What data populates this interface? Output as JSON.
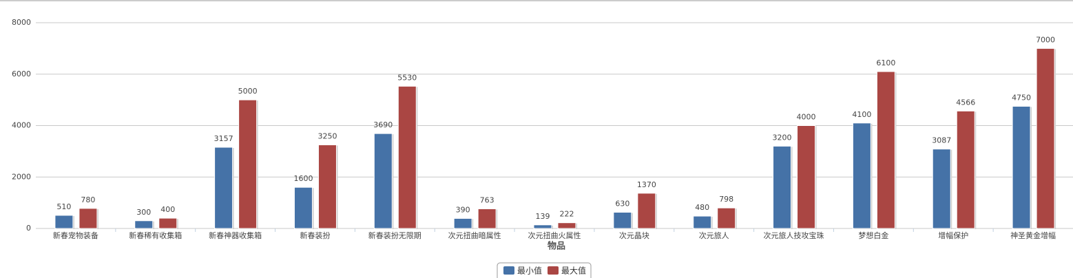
{
  "chart_data": {
    "type": "bar",
    "x_label": "物品",
    "categories": [
      "新春宠物装备",
      "新春稀有收集箱",
      "新春神器收集箱",
      "新春装扮",
      "新春装扮无限期",
      "次元扭曲暗属性",
      "次元扭曲火属性",
      "次元晶块",
      "次元旅人",
      "次元旅人技攻宝珠",
      "梦想白金",
      "增幅保护",
      "神圣黄金增幅"
    ],
    "series": [
      {
        "name": "最小值",
        "color": "#4572a7",
        "values": [
          510,
          300,
          3157,
          1600,
          3690,
          390,
          139,
          630,
          480,
          3200,
          4100,
          3087,
          4750
        ]
      },
      {
        "name": "最大值",
        "color": "#aa4643",
        "values": [
          780,
          400,
          5000,
          3250,
          5530,
          763,
          222,
          1370,
          798,
          4000,
          6100,
          4566,
          7000
        ]
      }
    ],
    "ylim": [
      0,
      8000
    ],
    "yticks": [
      0,
      2000,
      4000,
      6000,
      8000
    ],
    "grid": true,
    "legend": "bottom"
  }
}
